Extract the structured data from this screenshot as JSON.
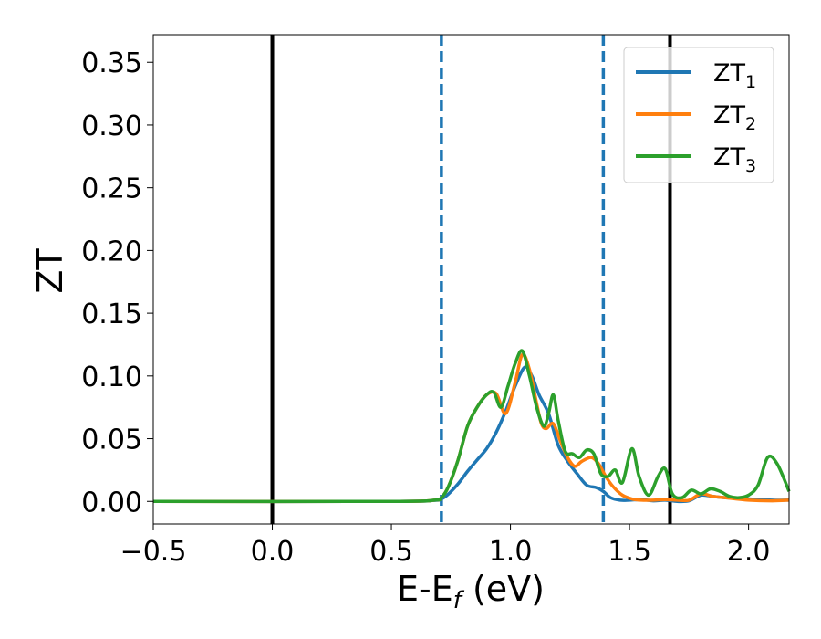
{
  "chart_data": {
    "type": "line",
    "title": "",
    "xlabel": {
      "main": "E-E",
      "sub": "f",
      "tail": " (eV)"
    },
    "ylabel": "ZT",
    "xlim": [
      -0.5,
      2.17
    ],
    "ylim": [
      -0.018,
      0.372
    ],
    "x_ticks": [
      -0.5,
      0.0,
      0.5,
      1.0,
      1.5,
      2.0
    ],
    "x_tick_labels": [
      "−0.5",
      "0.0",
      "0.5",
      "1.0",
      "1.5",
      "2.0"
    ],
    "y_ticks": [
      0.0,
      0.05,
      0.1,
      0.15,
      0.2,
      0.25,
      0.3,
      0.35
    ],
    "y_tick_labels": [
      "0.00",
      "0.05",
      "0.10",
      "0.15",
      "0.20",
      "0.25",
      "0.30",
      "0.35"
    ],
    "grid": false,
    "legend_position": "top-right",
    "vlines": [
      {
        "x": 0.0,
        "style": "solid",
        "color": "#000000"
      },
      {
        "x": 1.67,
        "style": "solid",
        "color": "#000000"
      },
      {
        "x": 0.71,
        "style": "dashed",
        "color": "#1f77b4"
      },
      {
        "x": 1.39,
        "style": "dashed",
        "color": "#1f77b4"
      }
    ],
    "series": [
      {
        "name": "ZT1",
        "label_main": "ZT",
        "label_sub": "1",
        "color": "#1f77b4",
        "x": [
          -0.5,
          0.5,
          0.68,
          0.71,
          0.74,
          0.78,
          0.82,
          0.86,
          0.9,
          0.94,
          0.98,
          1.02,
          1.06,
          1.09,
          1.12,
          1.16,
          1.2,
          1.24,
          1.28,
          1.32,
          1.36,
          1.39,
          1.42,
          1.46,
          1.5,
          1.55,
          1.6,
          1.65,
          1.7,
          1.75,
          1.8,
          1.85,
          1.9,
          2.0,
          2.1,
          2.17
        ],
        "y": [
          0.0,
          0.0,
          0.0008,
          0.002,
          0.006,
          0.014,
          0.024,
          0.033,
          0.042,
          0.055,
          0.072,
          0.092,
          0.107,
          0.1,
          0.085,
          0.07,
          0.045,
          0.032,
          0.022,
          0.013,
          0.011,
          0.008,
          0.003,
          0.001,
          0.001,
          0.0015,
          0.0005,
          0.001,
          0.0,
          0.0005,
          0.005,
          0.004,
          0.003,
          0.002,
          0.001,
          0.001
        ]
      },
      {
        "name": "ZT2",
        "label_main": "ZT",
        "label_sub": "2",
        "color": "#ff7f0e",
        "x": [
          -0.5,
          0.5,
          0.68,
          0.71,
          0.74,
          0.78,
          0.82,
          0.86,
          0.9,
          0.94,
          0.98,
          1.02,
          1.05,
          1.08,
          1.11,
          1.13,
          1.15,
          1.18,
          1.21,
          1.24,
          1.27,
          1.3,
          1.34,
          1.37,
          1.4,
          1.43,
          1.47,
          1.51,
          1.55,
          1.6,
          1.65,
          1.7,
          1.75,
          1.8,
          1.85,
          1.9,
          2.0,
          2.1,
          2.17
        ],
        "y": [
          0.0,
          0.0,
          0.001,
          0.003,
          0.012,
          0.033,
          0.06,
          0.075,
          0.085,
          0.086,
          0.07,
          0.095,
          0.117,
          0.105,
          0.078,
          0.062,
          0.058,
          0.062,
          0.048,
          0.035,
          0.028,
          0.032,
          0.035,
          0.03,
          0.02,
          0.012,
          0.005,
          0.002,
          0.001,
          0.001,
          0.0015,
          0.001,
          0.001,
          0.006,
          0.004,
          0.003,
          0.001,
          0.0005,
          0.001
        ]
      },
      {
        "name": "ZT3",
        "label_main": "ZT",
        "label_sub": "3",
        "color": "#2ca02c",
        "x": [
          -0.5,
          0.5,
          0.68,
          0.71,
          0.74,
          0.78,
          0.82,
          0.86,
          0.9,
          0.93,
          0.96,
          0.99,
          1.02,
          1.05,
          1.08,
          1.11,
          1.14,
          1.16,
          1.18,
          1.2,
          1.23,
          1.26,
          1.29,
          1.32,
          1.35,
          1.38,
          1.41,
          1.44,
          1.47,
          1.51,
          1.54,
          1.58,
          1.62,
          1.65,
          1.68,
          1.72,
          1.76,
          1.8,
          1.84,
          1.88,
          1.92,
          1.96,
          2.0,
          2.04,
          2.08,
          2.12,
          2.17
        ],
        "y": [
          0.0,
          0.0,
          0.001,
          0.003,
          0.012,
          0.033,
          0.06,
          0.075,
          0.085,
          0.087,
          0.075,
          0.092,
          0.11,
          0.12,
          0.1,
          0.075,
          0.06,
          0.07,
          0.085,
          0.065,
          0.04,
          0.038,
          0.035,
          0.041,
          0.038,
          0.022,
          0.02,
          0.025,
          0.015,
          0.042,
          0.02,
          0.005,
          0.02,
          0.026,
          0.006,
          0.003,
          0.009,
          0.006,
          0.01,
          0.008,
          0.004,
          0.003,
          0.005,
          0.013,
          0.035,
          0.03,
          0.008
        ]
      }
    ]
  }
}
